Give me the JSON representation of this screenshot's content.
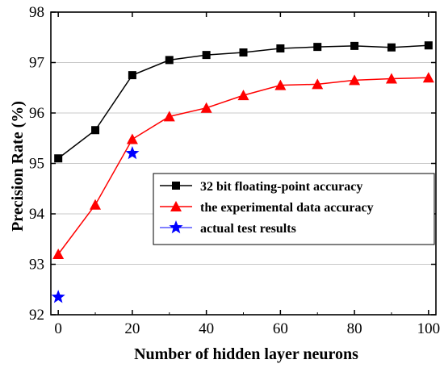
{
  "chart_data": {
    "type": "line",
    "xlabel": "Number of hidden layer neurons",
    "ylabel": "Precision Rate (%)",
    "xlim": [
      -2,
      102
    ],
    "ylim": [
      92,
      98
    ],
    "xticks": [
      0,
      20,
      40,
      60,
      80,
      100
    ],
    "yticks": [
      92,
      93,
      94,
      95,
      96,
      97,
      98
    ],
    "grid": "horizontal",
    "legend_position": "bottom-right",
    "series": [
      {
        "name": "32 bit floating-point accuracy",
        "marker": "square",
        "color": "#000000",
        "x": [
          0,
          10,
          20,
          30,
          40,
          50,
          60,
          70,
          80,
          90,
          100
        ],
        "y": [
          95.1,
          95.66,
          96.75,
          97.05,
          97.15,
          97.2,
          97.28,
          97.31,
          97.33,
          97.3,
          97.34
        ]
      },
      {
        "name": "the experimental data accuracy",
        "marker": "triangle",
        "color": "#ff0000",
        "x": [
          0,
          10,
          20,
          30,
          40,
          50,
          60,
          70,
          80,
          90,
          100
        ],
        "y": [
          93.2,
          94.18,
          95.48,
          95.93,
          96.1,
          96.35,
          96.55,
          96.57,
          96.65,
          96.68,
          96.7
        ]
      },
      {
        "name": "actual test results",
        "marker": "star",
        "color": "#0000ff",
        "line": false,
        "x": [
          0,
          20
        ],
        "y": [
          92.35,
          95.2
        ]
      }
    ]
  }
}
